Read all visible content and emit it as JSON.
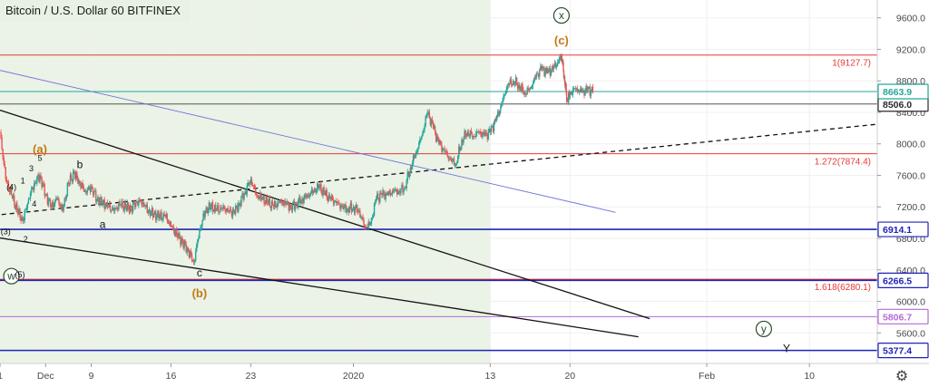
{
  "title": "Bitcoin / U.S. Dollar  60  BITFINEX",
  "settings_icon": "gear-icon",
  "chart_data": {
    "type": "candlestick",
    "symbol": "Bitcoin / U.S. Dollar",
    "interval": "60",
    "exchange": "BITFINEX",
    "y_ticks": [
      5600,
      6000,
      6400,
      6800,
      7200,
      7600,
      8000,
      8400,
      8800,
      9200,
      9600
    ],
    "y_range": [
      5350,
      9700
    ],
    "x_range": [
      "2019-12-01",
      "2020-02-15"
    ],
    "x_ticks": [
      {
        "label": "1",
        "date": "2019-12-01"
      },
      {
        "label": "Dec",
        "date": "2019-12-05"
      },
      {
        "label": "9",
        "date": "2019-12-09"
      },
      {
        "label": "16",
        "date": "2019-12-16"
      },
      {
        "label": "23",
        "date": "2019-12-23"
      },
      {
        "label": "2020",
        "date": "2020-01-01"
      },
      {
        "label": "13",
        "date": "2020-01-13"
      },
      {
        "label": "20",
        "date": "2020-01-20"
      },
      {
        "label": "Feb",
        "date": "2020-02-01"
      },
      {
        "label": "10",
        "date": "2020-02-10"
      }
    ],
    "price_path": [
      [
        "2019-12-01",
        8150
      ],
      [
        "2019-12-01T12",
        7550
      ],
      [
        "2019-12-02",
        7350
      ],
      [
        "2019-12-02T12",
        7150
      ],
      [
        "2019-12-03",
        7020
      ],
      [
        "2019-12-03T12",
        7300
      ],
      [
        "2019-12-04",
        7500
      ],
      [
        "2019-12-04T12",
        7600
      ],
      [
        "2019-12-05",
        7350
      ],
      [
        "2019-12-05T12",
        7200
      ],
      [
        "2019-12-06",
        7300
      ],
      [
        "2019-12-06T12",
        7150
      ],
      [
        "2019-12-07",
        7500
      ],
      [
        "2019-12-07T12",
        7620
      ],
      [
        "2019-12-08",
        7500
      ],
      [
        "2019-12-08T12",
        7400
      ],
      [
        "2019-12-09",
        7450
      ],
      [
        "2019-12-09T12",
        7300
      ],
      [
        "2019-12-10",
        7250
      ],
      [
        "2019-12-10T12",
        7200
      ],
      [
        "2019-12-11",
        7150
      ],
      [
        "2019-12-11T12",
        7230
      ],
      [
        "2019-12-12",
        7200
      ],
      [
        "2019-12-12T12",
        7180
      ],
      [
        "2019-12-13",
        7270
      ],
      [
        "2019-12-13T12",
        7260
      ],
      [
        "2019-12-14",
        7150
      ],
      [
        "2019-12-14T12",
        7100
      ],
      [
        "2019-12-15",
        7070
      ],
      [
        "2019-12-15T12",
        7080
      ],
      [
        "2019-12-16",
        6950
      ],
      [
        "2019-12-16T12",
        6850
      ],
      [
        "2019-12-17",
        6750
      ],
      [
        "2019-12-17T12",
        6650
      ],
      [
        "2019-12-18",
        6500
      ],
      [
        "2019-12-18T12",
        6900
      ],
      [
        "2019-12-19",
        7150
      ],
      [
        "2019-12-19T12",
        7200
      ],
      [
        "2019-12-20",
        7150
      ],
      [
        "2019-12-20T12",
        7180
      ],
      [
        "2019-12-21",
        7150
      ],
      [
        "2019-12-21T12",
        7130
      ],
      [
        "2019-12-22",
        7250
      ],
      [
        "2019-12-22T12",
        7400
      ],
      [
        "2019-12-23",
        7550
      ],
      [
        "2019-12-23T12",
        7350
      ],
      [
        "2019-12-24",
        7300
      ],
      [
        "2019-12-24T12",
        7250
      ],
      [
        "2019-12-25",
        7200
      ],
      [
        "2019-12-25T12",
        7250
      ],
      [
        "2019-12-26",
        7250
      ],
      [
        "2019-12-26T12",
        7200
      ],
      [
        "2019-12-27",
        7250
      ],
      [
        "2019-12-27T12",
        7300
      ],
      [
        "2019-12-28",
        7350
      ],
      [
        "2019-12-28T12",
        7400
      ],
      [
        "2019-12-29",
        7450
      ],
      [
        "2019-12-29T12",
        7350
      ],
      [
        "2019-12-30",
        7300
      ],
      [
        "2019-12-30T12",
        7250
      ],
      [
        "2019-12-31",
        7200
      ],
      [
        "2019-12-31T12",
        7180
      ],
      [
        "2020-01-01",
        7200
      ],
      [
        "2020-01-01T12",
        7150
      ],
      [
        "2020-01-02",
        6950
      ],
      [
        "2020-01-02T12",
        6980
      ],
      [
        "2020-01-03",
        7300
      ],
      [
        "2020-01-03T12",
        7350
      ],
      [
        "2020-01-04",
        7350
      ],
      [
        "2020-01-04T12",
        7400
      ],
      [
        "2020-01-05",
        7400
      ],
      [
        "2020-01-05T12",
        7450
      ],
      [
        "2020-01-06",
        7700
      ],
      [
        "2020-01-06T12",
        7900
      ],
      [
        "2020-01-07",
        8100
      ],
      [
        "2020-01-07T12",
        8400
      ],
      [
        "2020-01-08",
        8200
      ],
      [
        "2020-01-08T12",
        8000
      ],
      [
        "2020-01-09",
        7900
      ],
      [
        "2020-01-09T12",
        7800
      ],
      [
        "2020-01-10",
        7750
      ],
      [
        "2020-01-10T12",
        8050
      ],
      [
        "2020-01-11",
        8150
      ],
      [
        "2020-01-11T12",
        8100
      ],
      [
        "2020-01-12",
        8150
      ],
      [
        "2020-01-12T12",
        8100
      ],
      [
        "2020-01-13",
        8150
      ],
      [
        "2020-01-13T12",
        8300
      ],
      [
        "2020-01-14",
        8500
      ],
      [
        "2020-01-14T12",
        8750
      ],
      [
        "2020-01-15",
        8800
      ],
      [
        "2020-01-15T12",
        8750
      ],
      [
        "2020-01-16",
        8650
      ],
      [
        "2020-01-16T12",
        8700
      ],
      [
        "2020-01-17",
        8850
      ],
      [
        "2020-01-17T12",
        8950
      ],
      [
        "2020-01-18",
        8900
      ],
      [
        "2020-01-18T12",
        8950
      ],
      [
        "2020-01-19",
        9050
      ],
      [
        "2020-01-19T06",
        9127.7
      ],
      [
        "2020-01-19T12",
        8850
      ],
      [
        "2020-01-19T18",
        8550
      ],
      [
        "2020-01-20",
        8650
      ],
      [
        "2020-01-20T12",
        8700
      ],
      [
        "2020-01-21",
        8650
      ],
      [
        "2020-01-21T12",
        8680
      ],
      [
        "2020-01-22",
        8663.9
      ]
    ],
    "horizontal_levels": [
      {
        "name": "6914.1",
        "value": 6914.1,
        "color": "#1f24b8",
        "tag": "6914.1"
      },
      {
        "name": "6266.5",
        "value": 6266.5,
        "color": "#1f24b8",
        "tag": "6266.5"
      },
      {
        "name": "5377.4",
        "value": 5377.4,
        "color": "#1f24b8",
        "tag": "5377.4"
      },
      {
        "name": "5806.7",
        "value": 5806.7,
        "color": "#b36ad6",
        "tag": "5806.7"
      },
      {
        "name": "8506.0",
        "value": 8506.0,
        "color": "#555555",
        "tag": "8506.0"
      },
      {
        "name": "8663.9",
        "value": 8663.9,
        "color": "#26a69a",
        "tag": "8663.9"
      }
    ],
    "fib_levels": [
      {
        "label": "1(9127.7)",
        "value": 9127.7,
        "color": "#e53935"
      },
      {
        "label": "1.272(7874.4)",
        "value": 7874.4,
        "color": "#e53935"
      },
      {
        "label": "1.618(6280.1)",
        "value": 6280.1,
        "color": "#e53935"
      }
    ],
    "wave_labels": [
      {
        "text": "x",
        "date": "2020-01-19T06",
        "price": 9630,
        "circled": true,
        "color": "#2b4b2b"
      },
      {
        "text": "(c)",
        "date": "2020-01-19T06",
        "price": 9310,
        "color": "#c07a12"
      },
      {
        "text": "(a)",
        "date": "2019-12-04T12",
        "price": 7930,
        "color": "#c07a12"
      },
      {
        "text": "5",
        "date": "2019-12-04T12",
        "price": 7830,
        "color": "#111111"
      },
      {
        "text": "b",
        "date": "2019-12-08",
        "price": 7740,
        "color": "#111111"
      },
      {
        "text": "a",
        "date": "2019-12-10",
        "price": 6980,
        "color": "#111111"
      },
      {
        "text": "3",
        "date": "2019-12-03T18",
        "price": 7700,
        "color": "#111111"
      },
      {
        "text": "1",
        "date": "2019-12-03",
        "price": 7540,
        "color": "#111111"
      },
      {
        "text": "(4)",
        "date": "2019-12-02",
        "price": 7460,
        "color": "#111111"
      },
      {
        "text": "4",
        "date": "2019-12-04",
        "price": 7250,
        "color": "#111111"
      },
      {
        "text": "(3)",
        "date": "2019-12-01T12",
        "price": 6900,
        "color": "#111111"
      },
      {
        "text": "2",
        "date": "2019-12-03T06",
        "price": 6800,
        "color": "#111111"
      },
      {
        "text": "w",
        "date": "2019-12-02",
        "price": 6320,
        "circled": true,
        "color": "#2b4b2b"
      },
      {
        "text": "(5)",
        "date": "2019-12-02T18",
        "price": 6350,
        "color": "#111111"
      },
      {
        "text": "c",
        "date": "2019-12-18T12",
        "price": 6360,
        "color": "#111111"
      },
      {
        "text": "(b)",
        "date": "2019-12-18T12",
        "price": 6100,
        "color": "#c07a12"
      },
      {
        "text": "y",
        "date": "2020-02-06",
        "price": 5650,
        "circled": true,
        "color": "#2b4b2b"
      },
      {
        "text": "Y",
        "date": "2020-02-08",
        "price": 5400,
        "color": "#111111"
      }
    ],
    "trend_lines": [
      {
        "name": "upper-channel",
        "from": [
          "2019-11-29",
          8520
        ],
        "to": [
          "2020-01-27",
          5780
        ],
        "color": "#111111",
        "style": "solid"
      },
      {
        "name": "lower-channel",
        "from": [
          "2019-11-29",
          6850
        ],
        "to": [
          "2020-01-26",
          5550
        ],
        "color": "#111111",
        "style": "solid"
      },
      {
        "name": "rising-dashed",
        "from": [
          "2019-11-29",
          7070
        ],
        "to": [
          "2020-02-18",
          8280
        ],
        "color": "#111111",
        "style": "dashed"
      },
      {
        "name": "falling-blue",
        "from": [
          "2019-11-29",
          9000
        ],
        "to": [
          "2020-01-24",
          7130
        ],
        "color": "#6f74d9",
        "style": "solid"
      }
    ],
    "shaded_region": {
      "from": "2019-11-29",
      "to": "2020-01-13",
      "color": "#eaf3e6"
    }
  }
}
